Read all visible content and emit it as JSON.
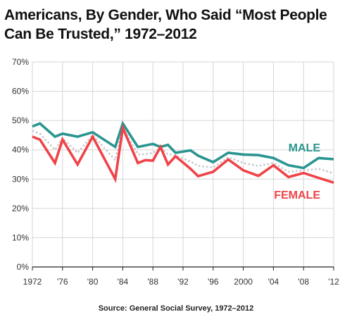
{
  "title_line1": "Americans, By Gender, Who Said “Most People",
  "title_line2": "Can Be Trusted,” 1972–2012",
  "source": "Source: General Social Survey, 1972–2012",
  "chart_data": {
    "type": "line",
    "title": "Americans, By Gender, Who Said “Most People Can Be Trusted,” 1972–2012",
    "xlim": [
      1972,
      2012
    ],
    "ylim": [
      0,
      70
    ],
    "x_ticks": [
      1972,
      1976,
      1980,
      1984,
      1988,
      1992,
      1996,
      2000,
      2004,
      2008,
      2012
    ],
    "x_tick_labels": [
      "1972",
      "'76",
      "'80",
      "'84",
      "'88",
      "'92",
      "'96",
      "2000",
      "'04",
      "'08",
      "'12"
    ],
    "y_ticks": [
      0,
      10,
      20,
      30,
      40,
      50,
      60,
      70
    ],
    "y_tick_labels": [
      "0%",
      "10%",
      "20%",
      "30%",
      "40%",
      "50%",
      "60%",
      "70%"
    ],
    "grid": true,
    "series": [
      {
        "name": "MALE",
        "color": "#2a9590",
        "style": "solid",
        "x": [
          1972,
          1973,
          1975,
          1976,
          1978,
          1980,
          1983,
          1984,
          1986,
          1987,
          1988,
          1989,
          1990,
          1991,
          1993,
          1994,
          1996,
          1998,
          2000,
          2002,
          2004,
          2006,
          2008,
          2010,
          2012
        ],
        "values": [
          48,
          49,
          44.5,
          45.5,
          44.5,
          46,
          41,
          49,
          41,
          41.5,
          42,
          41,
          41.7,
          39,
          39.8,
          38,
          35.8,
          39,
          38.4,
          38.2,
          37.2,
          34.7,
          33.8,
          37.2,
          36.8
        ]
      },
      {
        "name": "FEMALE",
        "color": "#ef4348",
        "style": "solid",
        "x": [
          1972,
          1973,
          1975,
          1976,
          1978,
          1980,
          1983,
          1984,
          1986,
          1987,
          1988,
          1989,
          1990,
          1991,
          1993,
          1994,
          1996,
          1998,
          2000,
          2002,
          2004,
          2006,
          2008,
          2010,
          2012
        ],
        "values": [
          44.5,
          43.5,
          35.5,
          43.5,
          35,
          44.5,
          30,
          47.5,
          35.5,
          36.5,
          36.3,
          41,
          35,
          37.8,
          33.5,
          31,
          32.5,
          36.7,
          33,
          31.1,
          34.7,
          30.7,
          32.1,
          30.4,
          28.8
        ]
      },
      {
        "color": "#c8c8ce",
        "style": "dotted",
        "x": [
          1972,
          1973,
          1975,
          1976,
          1978,
          1980,
          1983,
          1984,
          1986,
          1987,
          1988,
          1989,
          1990,
          1991,
          1993,
          1994,
          1996,
          1998,
          2000,
          2002,
          2004,
          2006,
          2008,
          2010,
          2012
        ],
        "values": [
          46.5,
          45.5,
          40,
          44,
          39,
          45,
          36.5,
          47.5,
          38.5,
          38.5,
          39,
          40.5,
          38.5,
          38,
          36,
          34.5,
          34,
          37.5,
          35.5,
          34.5,
          35.5,
          32.5,
          33,
          33.5,
          32
        ]
      }
    ]
  }
}
